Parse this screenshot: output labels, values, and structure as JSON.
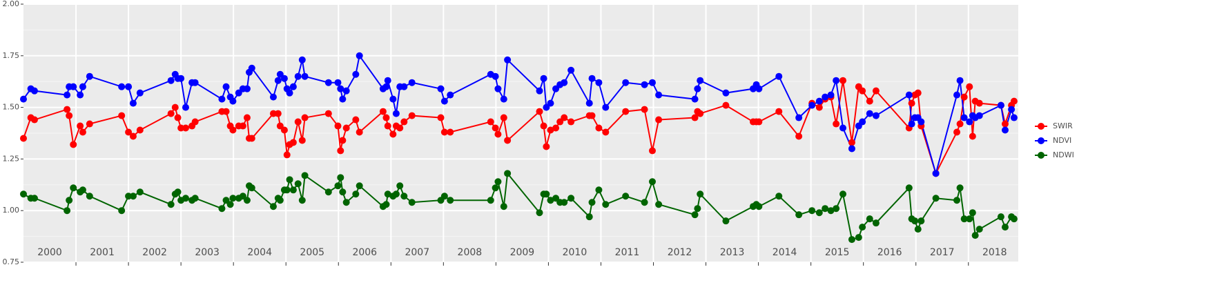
{
  "chart_data": {
    "type": "line",
    "xlim": [
      2000,
      2018.95
    ],
    "xticks": [
      2001,
      2002,
      2003,
      2004,
      2005,
      2006,
      2007,
      2008,
      2009,
      2010,
      2011,
      2012,
      2013,
      2014,
      2015,
      2016,
      2017,
      2018
    ],
    "year_labels": [
      2000,
      2001,
      2002,
      2003,
      2004,
      2005,
      2006,
      2007,
      2008,
      2009,
      2010,
      2011,
      2012,
      2013,
      2014,
      2015,
      2016,
      2017,
      2018
    ],
    "ylim": [
      0.75,
      2.0
    ],
    "yticks": [
      {
        "value": 0.75,
        "label": "0.75"
      },
      {
        "value": 1.0,
        "label": "1.00"
      },
      {
        "value": 1.25,
        "label": "1.25"
      },
      {
        "value": 1.5,
        "label": "1.50"
      },
      {
        "value": 1.75,
        "label": "1.75"
      },
      {
        "value": 2.0,
        "label": "2.00"
      }
    ],
    "grid": true,
    "legend": "right",
    "x": [
      2000.0,
      2000.14,
      2000.21,
      2000.83,
      2000.87,
      2000.95,
      2001.08,
      2001.13,
      2001.26,
      2001.87,
      2002.0,
      2002.09,
      2002.22,
      2002.81,
      2002.89,
      2002.94,
      2003.0,
      2003.09,
      2003.21,
      2003.27,
      2003.78,
      2003.86,
      2003.94,
      2003.99,
      2004.1,
      2004.18,
      2004.26,
      2004.3,
      2004.35,
      2004.76,
      2004.85,
      2004.89,
      2004.97,
      2005.02,
      2005.07,
      2005.14,
      2005.23,
      2005.31,
      2005.36,
      2005.81,
      2005.99,
      2006.04,
      2006.08,
      2006.15,
      2006.33,
      2006.4,
      2006.85,
      2006.91,
      2006.94,
      2007.04,
      2007.1,
      2007.17,
      2007.25,
      2007.4,
      2007.95,
      2008.02,
      2008.13,
      2008.9,
      2008.99,
      2009.04,
      2009.15,
      2009.22,
      2009.83,
      2009.91,
      2009.96,
      2010.04,
      2010.14,
      2010.22,
      2010.3,
      2010.43,
      2010.78,
      2010.83,
      2010.96,
      2011.09,
      2011.47,
      2011.83,
      2011.98,
      2012.1,
      2012.79,
      2012.84,
      2012.89,
      2013.38,
      2013.9,
      2013.96,
      2014.01,
      2014.39,
      2014.77,
      2015.02,
      2015.16,
      2015.27,
      2015.38,
      2015.48,
      2015.61,
      2015.78,
      2015.91,
      2015.98,
      2016.12,
      2016.24,
      2016.87,
      2016.92,
      2016.98,
      2017.04,
      2017.1,
      2017.38,
      2017.78,
      2017.84,
      2017.92,
      2018.02,
      2018.08,
      2018.13,
      2018.21,
      2018.62,
      2018.7,
      2018.82,
      2018.87
    ],
    "series": [
      {
        "name": "SWIR",
        "color": "#ff0000",
        "values": [
          1.35,
          1.45,
          1.44,
          1.49,
          1.46,
          1.32,
          1.41,
          1.38,
          1.42,
          1.46,
          1.38,
          1.36,
          1.39,
          1.47,
          1.5,
          1.45,
          1.4,
          1.4,
          1.41,
          1.43,
          1.48,
          1.48,
          1.41,
          1.39,
          1.41,
          1.41,
          1.45,
          1.35,
          1.35,
          1.47,
          1.47,
          1.41,
          1.39,
          1.27,
          1.32,
          1.33,
          1.43,
          1.34,
          1.45,
          1.47,
          1.41,
          1.29,
          1.34,
          1.4,
          1.44,
          1.38,
          1.48,
          1.45,
          1.41,
          1.37,
          1.41,
          1.4,
          1.43,
          1.46,
          1.45,
          1.38,
          1.38,
          1.43,
          1.4,
          1.37,
          1.45,
          1.34,
          1.48,
          1.41,
          1.31,
          1.39,
          1.4,
          1.43,
          1.45,
          1.43,
          1.46,
          1.46,
          1.4,
          1.38,
          1.48,
          1.49,
          1.29,
          1.44,
          1.45,
          1.48,
          1.47,
          1.51,
          1.43,
          1.43,
          1.43,
          1.48,
          1.36,
          1.52,
          1.5,
          1.54,
          1.55,
          1.42,
          1.63,
          1.33,
          1.6,
          1.58,
          1.53,
          1.58,
          1.4,
          1.52,
          1.56,
          1.57,
          1.41,
          1.18,
          1.38,
          1.42,
          1.55,
          1.6,
          1.36,
          1.53,
          1.52,
          1.51,
          1.42,
          1.51,
          1.53
        ]
      },
      {
        "name": "NDVI",
        "color": "#0000ff",
        "values": [
          1.54,
          1.59,
          1.58,
          1.56,
          1.6,
          1.6,
          1.56,
          1.6,
          1.65,
          1.6,
          1.6,
          1.52,
          1.57,
          1.63,
          1.66,
          1.64,
          1.64,
          1.5,
          1.62,
          1.62,
          1.54,
          1.6,
          1.55,
          1.53,
          1.57,
          1.59,
          1.59,
          1.67,
          1.69,
          1.55,
          1.63,
          1.66,
          1.64,
          1.59,
          1.57,
          1.6,
          1.65,
          1.73,
          1.65,
          1.62,
          1.62,
          1.59,
          1.54,
          1.58,
          1.66,
          1.75,
          1.59,
          1.6,
          1.63,
          1.54,
          1.47,
          1.6,
          1.6,
          1.62,
          1.59,
          1.53,
          1.56,
          1.66,
          1.65,
          1.59,
          1.54,
          1.73,
          1.58,
          1.64,
          1.5,
          1.52,
          1.59,
          1.61,
          1.62,
          1.68,
          1.52,
          1.64,
          1.62,
          1.5,
          1.62,
          1.61,
          1.62,
          1.56,
          1.54,
          1.59,
          1.63,
          1.57,
          1.59,
          1.61,
          1.59,
          1.65,
          1.45,
          1.51,
          1.53,
          1.55,
          1.56,
          1.63,
          1.4,
          1.3,
          1.41,
          1.43,
          1.47,
          1.46,
          1.56,
          1.42,
          1.45,
          1.45,
          1.43,
          1.18,
          1.56,
          1.63,
          1.45,
          1.43,
          1.46,
          1.45,
          1.46,
          1.51,
          1.39,
          1.49,
          1.45
        ]
      },
      {
        "name": "NDWI",
        "color": "#006400",
        "values": [
          1.08,
          1.06,
          1.06,
          1.0,
          1.05,
          1.11,
          1.09,
          1.1,
          1.07,
          1.0,
          1.07,
          1.07,
          1.09,
          1.03,
          1.08,
          1.09,
          1.05,
          1.06,
          1.05,
          1.06,
          1.01,
          1.05,
          1.03,
          1.06,
          1.06,
          1.07,
          1.05,
          1.12,
          1.11,
          1.02,
          1.06,
          1.05,
          1.1,
          1.1,
          1.15,
          1.1,
          1.13,
          1.05,
          1.17,
          1.09,
          1.12,
          1.16,
          1.09,
          1.04,
          1.08,
          1.12,
          1.02,
          1.03,
          1.08,
          1.07,
          1.08,
          1.12,
          1.07,
          1.04,
          1.05,
          1.07,
          1.05,
          1.05,
          1.11,
          1.14,
          1.02,
          1.18,
          0.99,
          1.08,
          1.08,
          1.05,
          1.06,
          1.04,
          1.04,
          1.06,
          0.97,
          1.04,
          1.1,
          1.03,
          1.07,
          1.04,
          1.14,
          1.03,
          0.98,
          1.01,
          1.08,
          0.95,
          1.02,
          1.03,
          1.02,
          1.07,
          0.98,
          1.0,
          0.99,
          1.01,
          1.0,
          1.01,
          1.08,
          0.86,
          0.87,
          0.92,
          0.96,
          0.94,
          1.11,
          0.96,
          0.95,
          0.91,
          0.95,
          1.06,
          1.05,
          1.11,
          0.96,
          0.96,
          0.99,
          0.88,
          0.91,
          0.97,
          0.92,
          0.97,
          0.96
        ]
      }
    ]
  }
}
